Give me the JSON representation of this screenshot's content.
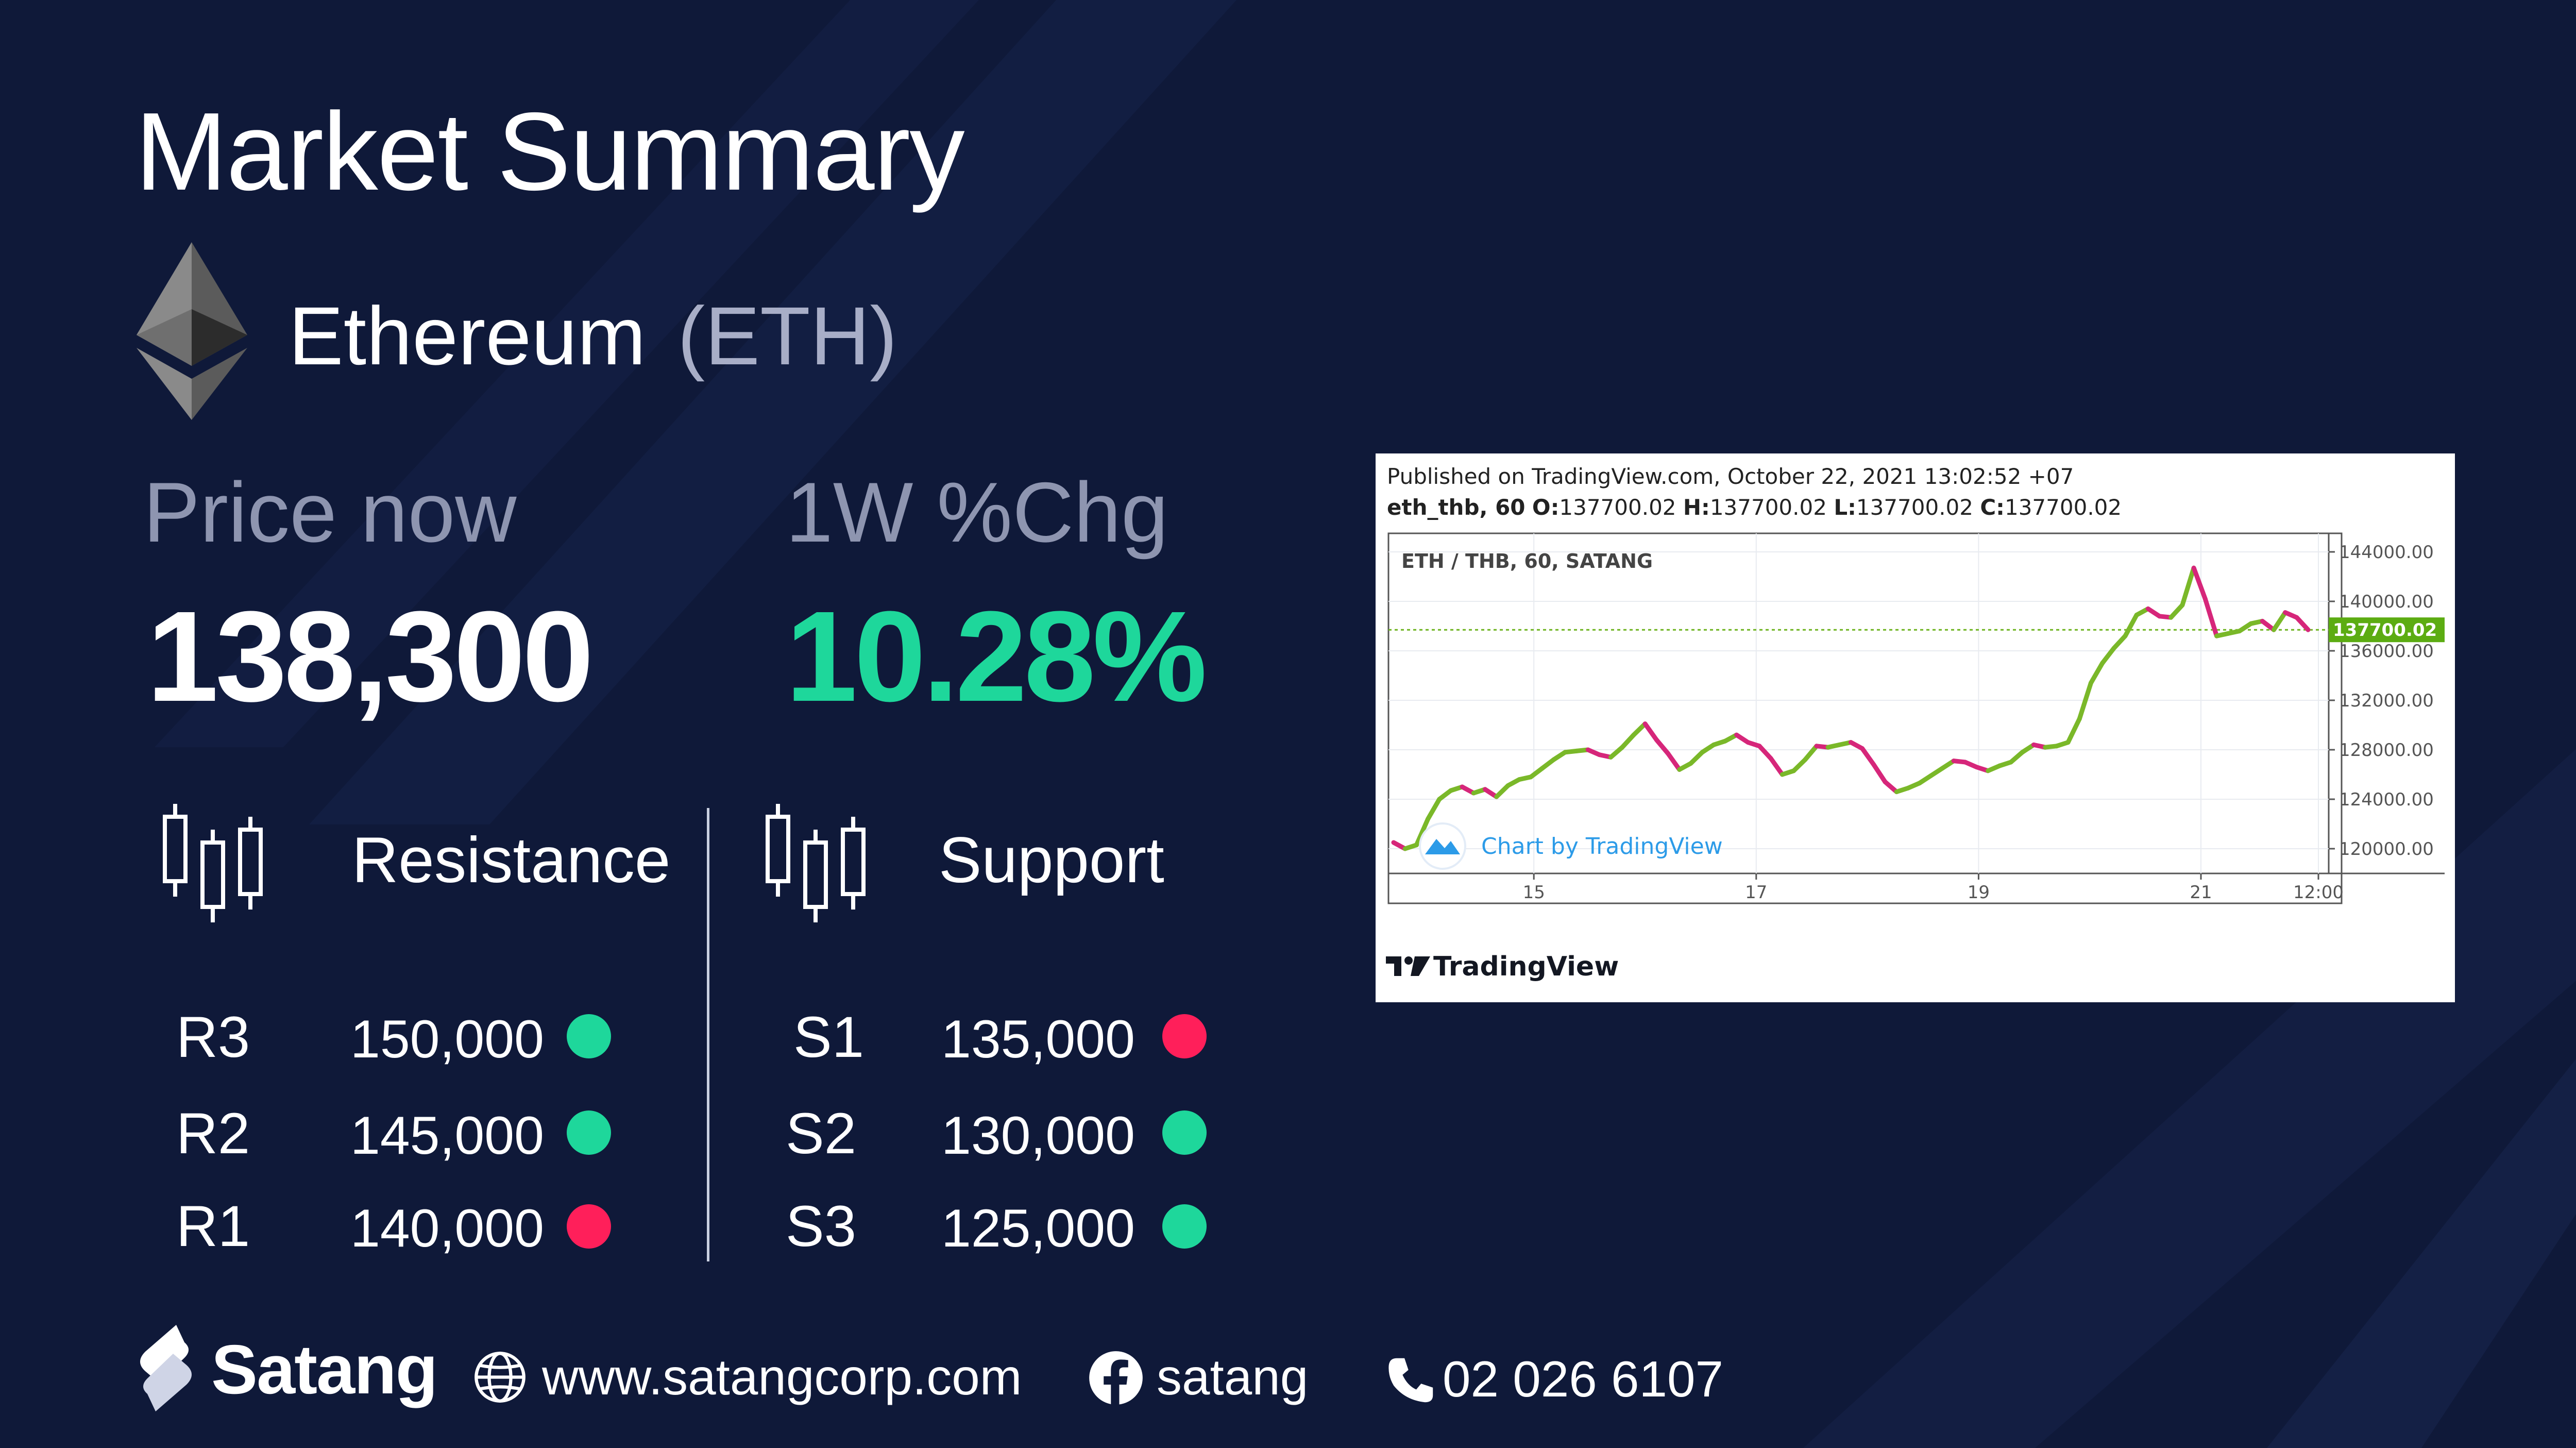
{
  "header": {
    "title": "Market Summary",
    "coin_name": "Ethereum",
    "coin_symbol": "(ETH)"
  },
  "stats": {
    "price_label": "Price now",
    "price_value": "138,300",
    "change_label": "1W %Chg",
    "change_value": "10.28%"
  },
  "resistance": {
    "label": "Resistance",
    "levels": [
      {
        "name": "R3",
        "value": "150,000",
        "status_color": "#1ed79b"
      },
      {
        "name": "R2",
        "value": "145,000",
        "status_color": "#1ed79b"
      },
      {
        "name": "R1",
        "value": "140,000",
        "status_color": "#ff1f5a"
      }
    ]
  },
  "support": {
    "label": "Support",
    "levels": [
      {
        "name": "S1",
        "value": "135,000",
        "status_color": "#ff1f5a"
      },
      {
        "name": "S2",
        "value": "130,000",
        "status_color": "#1ed79b"
      },
      {
        "name": "S3",
        "value": "125,000",
        "status_color": "#1ed79b"
      }
    ]
  },
  "chart": {
    "published": "Published on TradingView.com, October 22, 2021 13:02:52 +07",
    "ohlc_symbol": "eth_thb, 60",
    "ohlc": {
      "o": "137700.02",
      "h": "137700.02",
      "l": "137700.02",
      "c": "137700.02"
    },
    "watermark": "Chart by TradingView",
    "logo_text": "TradingView"
  },
  "chart_data": {
    "type": "line",
    "title": "ETH / THB, 60, SATANG",
    "x_tick_labels": [
      "15",
      "17",
      "19",
      "21",
      "12:00"
    ],
    "y_tick_labels": [
      "144000.00",
      "140000.00",
      "136000.00",
      "132000.00",
      "128000.00",
      "124000.00",
      "120000.00"
    ],
    "ylim": [
      118000,
      145500
    ],
    "last_price": 137700.02,
    "last_price_label": "137700.02",
    "grid": true,
    "series": [
      {
        "values": [
          120500,
          120000,
          120300,
          122400,
          124000,
          124700,
          125000,
          124500,
          124800,
          124200,
          125100,
          125600,
          125800,
          126500,
          127200,
          127800,
          127900,
          128000,
          127600,
          127400,
          128200,
          129200,
          130100,
          128800,
          127700,
          126400,
          126900,
          127800,
          128400,
          128700,
          129200,
          128600,
          128300,
          127300,
          126000,
          126300,
          127200,
          128300,
          128200,
          128400,
          128600,
          128100,
          126800,
          125400,
          124600,
          124900,
          125300,
          125900,
          126500,
          127100,
          127000,
          126600,
          126300,
          126700,
          127000,
          127800,
          128400,
          128200,
          128300,
          128600,
          130500,
          133400,
          135000,
          136200,
          137200,
          138900,
          139400,
          138800,
          138700,
          139700,
          142700,
          140200,
          137200,
          137400,
          137600,
          138200,
          138400,
          137700,
          139100,
          138700,
          137700
        ]
      }
    ]
  },
  "footer": {
    "brand": "Satang",
    "website": "www.satangcorp.com",
    "facebook": "satang",
    "phone": "02 026 6107"
  }
}
